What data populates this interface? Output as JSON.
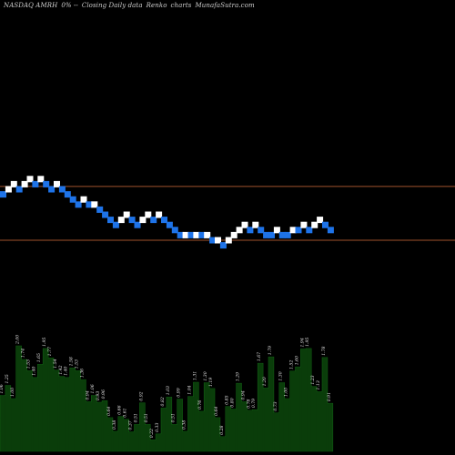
{
  "header": {
    "ticker": "NASDAQ AMRH",
    "pct": "0% --",
    "chart_kind": "Closing Daily data",
    "renko": "Renko",
    "charts": "charts",
    "site": "MunafaSutra.com"
  },
  "colors": {
    "background": "#000000",
    "up_brick": "#ffffff",
    "down_brick": "#1e73e8",
    "ref_line": "#a0522d",
    "volume_fill": "#0a3d0a",
    "volume_stroke": "#0f5a12",
    "volume_label": "#e6e6e6"
  },
  "chart_data": [
    {
      "type": "renko",
      "reference_lines": [
        {
          "name": "upper",
          "value": 13
        },
        {
          "name": "lower",
          "value": 2
        }
      ],
      "bricks": [
        {
          "dir": "down",
          "level": 11
        },
        {
          "dir": "up",
          "level": 12
        },
        {
          "dir": "up",
          "level": 13
        },
        {
          "dir": "down",
          "level": 12
        },
        {
          "dir": "up",
          "level": 13
        },
        {
          "dir": "up",
          "level": 14
        },
        {
          "dir": "down",
          "level": 13
        },
        {
          "dir": "up",
          "level": 14
        },
        {
          "dir": "down",
          "level": 13
        },
        {
          "dir": "down",
          "level": 12
        },
        {
          "dir": "up",
          "level": 13
        },
        {
          "dir": "down",
          "level": 12
        },
        {
          "dir": "down",
          "level": 11
        },
        {
          "dir": "down",
          "level": 10
        },
        {
          "dir": "down",
          "level": 9
        },
        {
          "dir": "up",
          "level": 10
        },
        {
          "dir": "down",
          "level": 9
        },
        {
          "dir": "up",
          "level": 9
        },
        {
          "dir": "down",
          "level": 8
        },
        {
          "dir": "down",
          "level": 7
        },
        {
          "dir": "down",
          "level": 6
        },
        {
          "dir": "down",
          "level": 5
        },
        {
          "dir": "up",
          "level": 6
        },
        {
          "dir": "up",
          "level": 7
        },
        {
          "dir": "down",
          "level": 6
        },
        {
          "dir": "down",
          "level": 5
        },
        {
          "dir": "up",
          "level": 6
        },
        {
          "dir": "up",
          "level": 7
        },
        {
          "dir": "down",
          "level": 6
        },
        {
          "dir": "up",
          "level": 7
        },
        {
          "dir": "down",
          "level": 6
        },
        {
          "dir": "down",
          "level": 5
        },
        {
          "dir": "down",
          "level": 4
        },
        {
          "dir": "down",
          "level": 3
        },
        {
          "dir": "up",
          "level": 3
        },
        {
          "dir": "down",
          "level": 3
        },
        {
          "dir": "up",
          "level": 3
        },
        {
          "dir": "down",
          "level": 3
        },
        {
          "dir": "up",
          "level": 3
        },
        {
          "dir": "down",
          "level": 2
        },
        {
          "dir": "up",
          "level": 2
        },
        {
          "dir": "down",
          "level": 1
        },
        {
          "dir": "up",
          "level": 2
        },
        {
          "dir": "up",
          "level": 3
        },
        {
          "dir": "up",
          "level": 4
        },
        {
          "dir": "up",
          "level": 5
        },
        {
          "dir": "down",
          "level": 4
        },
        {
          "dir": "up",
          "level": 5
        },
        {
          "dir": "down",
          "level": 4
        },
        {
          "dir": "down",
          "level": 3
        },
        {
          "dir": "down",
          "level": 3
        },
        {
          "dir": "up",
          "level": 4
        },
        {
          "dir": "down",
          "level": 3
        },
        {
          "dir": "down",
          "level": 3
        },
        {
          "dir": "up",
          "level": 4
        },
        {
          "dir": "down",
          "level": 4
        },
        {
          "dir": "up",
          "level": 5
        },
        {
          "dir": "down",
          "level": 4
        },
        {
          "dir": "up",
          "level": 5
        },
        {
          "dir": "up",
          "level": 6
        },
        {
          "dir": "down",
          "level": 5
        },
        {
          "dir": "down",
          "level": 4
        }
      ]
    },
    {
      "type": "bar",
      "series_label": "volume",
      "values": [
        1.06,
        1.25,
        1.0,
        2.0,
        1.74,
        1.53,
        1.4,
        1.65,
        1.95,
        1.77,
        1.54,
        1.42,
        1.4,
        1.58,
        1.53,
        1.36,
        0.94,
        1.06,
        0.93,
        0.96,
        0.64,
        0.38,
        0.66,
        0.61,
        0.37,
        0.51,
        0.92,
        0.51,
        0.22,
        0.33,
        0.82,
        1.03,
        0.51,
        0.99,
        0.38,
        1.04,
        1.31,
        0.76,
        1.3,
        1.19,
        0.64,
        0.28,
        0.85,
        0.8,
        1.29,
        0.94,
        0.78,
        0.79,
        1.67,
        1.2,
        1.79,
        0.73,
        1.3,
        1.0,
        1.52,
        1.6,
        1.94,
        1.95,
        1.23,
        1.13,
        1.78,
        0.91
      ],
      "labels": [
        "1.06",
        "1.25",
        "1.00",
        "2.00",
        "1.74",
        "1.53",
        "1.40",
        "1.65",
        "1.95",
        "1.77",
        "1.54",
        "1.42",
        "1.40",
        "1.58",
        "1.53",
        "1.36",
        "0.94",
        "1.06",
        "0.93",
        "0.96",
        "0.64",
        "0.38",
        "0.66",
        "0.61",
        "0.37",
        "0.51",
        "0.92",
        "0.51",
        "0.22",
        "0.33",
        "0.82",
        "1.03",
        "0.51",
        "0.99",
        "0.38",
        "1.04",
        "1.31",
        "0.76",
        "1.30",
        "1.19",
        "0.64",
        "0.28",
        "0.85",
        "0.80",
        "1.29",
        "0.94",
        "0.78",
        "0.79",
        "1.67",
        "1.20",
        "1.79",
        "0.73",
        "1.30",
        "1.00",
        "1.52",
        "1.60",
        "1.94",
        "1.95",
        "1.23",
        "1.13",
        "1.78",
        "0.91"
      ]
    }
  ]
}
